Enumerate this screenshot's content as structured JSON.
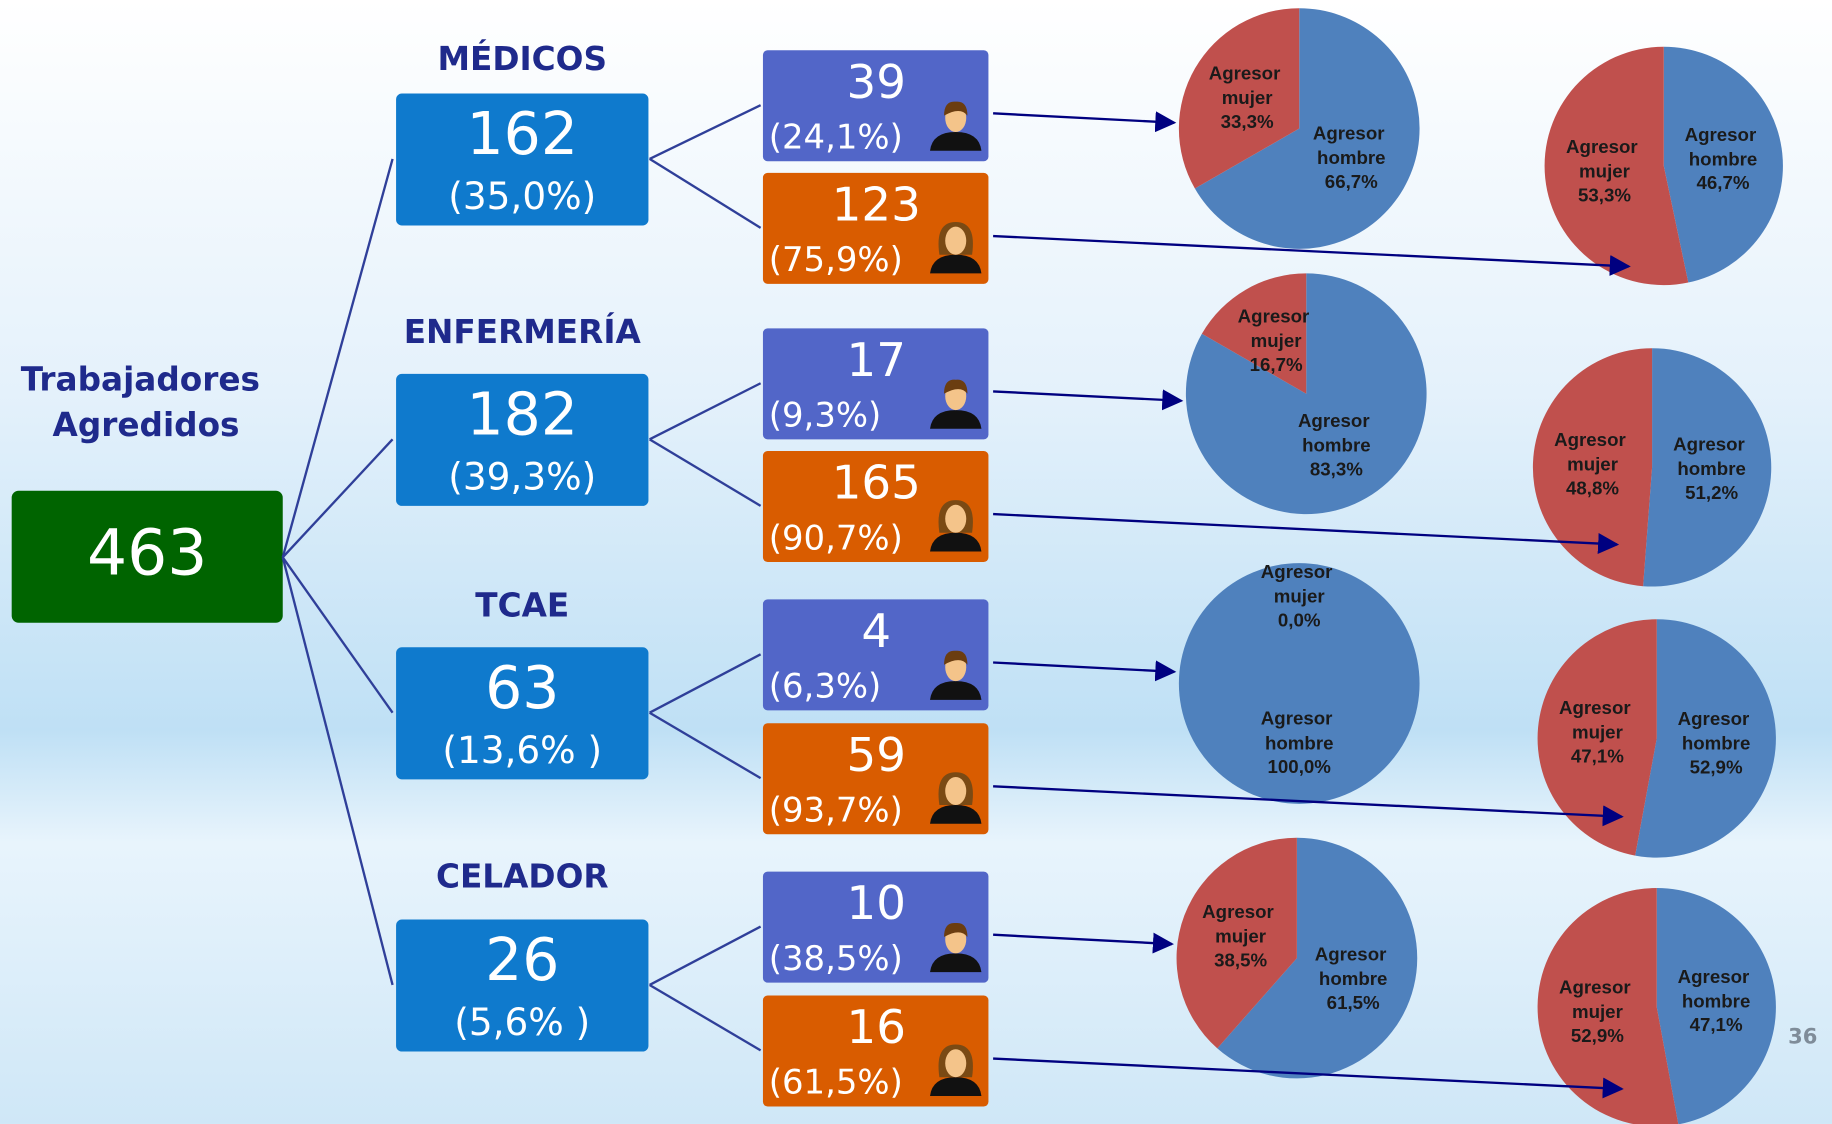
{
  "root": {
    "title": "Trabajadores Agredidos",
    "value": 463
  },
  "groups": [
    {
      "name": "MÉDICOS",
      "total": 162,
      "share": "(35,0%)",
      "male": {
        "count": 39,
        "share": "(24,1%)",
        "pie": {
          "type": "pie",
          "categories": [
            "Agresor mujer",
            "Agresor hombre"
          ],
          "values": [
            33.3,
            66.7
          ],
          "value_labels": [
            "33,3%",
            "66,7%"
          ],
          "colors": [
            "#c0504d",
            "#4f81bd"
          ]
        }
      },
      "female": {
        "count": 123,
        "share": "(75,9%)",
        "pie": {
          "type": "pie",
          "categories": [
            "Agresor mujer",
            "Agresor hombre"
          ],
          "values": [
            53.3,
            46.7
          ],
          "value_labels": [
            "53,3%",
            "46,7%"
          ],
          "colors": [
            "#c0504d",
            "#4f81bd"
          ]
        }
      }
    },
    {
      "name": "ENFERMERÍA",
      "total": 182,
      "share": "(39,3%)",
      "male": {
        "count": 17,
        "share": "(9,3%)",
        "pie": {
          "type": "pie",
          "categories": [
            "Agresor mujer",
            "Agresor hombre"
          ],
          "values": [
            16.7,
            83.3
          ],
          "value_labels": [
            "16,7%",
            "83,3%"
          ],
          "colors": [
            "#c0504d",
            "#4f81bd"
          ]
        }
      },
      "female": {
        "count": 165,
        "share": "(90,7%)",
        "pie": {
          "type": "pie",
          "categories": [
            "Agresor mujer",
            "Agresor hombre"
          ],
          "values": [
            48.8,
            51.2
          ],
          "value_labels": [
            "48,8%",
            "51,2%"
          ],
          "colors": [
            "#c0504d",
            "#4f81bd"
          ]
        }
      }
    },
    {
      "name": "TCAE",
      "total": 63,
      "share": "(13,6% )",
      "male": {
        "count": 4,
        "share": "(6,3%)",
        "pie": {
          "type": "pie",
          "categories": [
            "Agresor mujer",
            "Agresor hombre"
          ],
          "values": [
            0.0,
            100.0
          ],
          "value_labels": [
            "0,0%",
            "100,0%"
          ],
          "colors": [
            "#c0504d",
            "#4f81bd"
          ]
        }
      },
      "female": {
        "count": 59,
        "share": "(93,7%)",
        "pie": {
          "type": "pie",
          "categories": [
            "Agresor mujer",
            "Agresor hombre"
          ],
          "values": [
            47.1,
            52.9
          ],
          "value_labels": [
            "47,1%",
            "52,9%"
          ],
          "colors": [
            "#c0504d",
            "#4f81bd"
          ]
        }
      }
    },
    {
      "name": "CELADOR",
      "total": 26,
      "share": "(5,6% )",
      "male": {
        "count": 10,
        "share": "(38,5%)",
        "pie": {
          "type": "pie",
          "categories": [
            "Agresor mujer",
            "Agresor hombre"
          ],
          "values": [
            38.5,
            61.5
          ],
          "value_labels": [
            "38,5%",
            "61,5%"
          ],
          "colors": [
            "#c0504d",
            "#4f81bd"
          ]
        }
      },
      "female": {
        "count": 16,
        "share": "(61,5%)",
        "pie": {
          "type": "pie",
          "categories": [
            "Agresor mujer",
            "Agresor hombre"
          ],
          "values": [
            52.9,
            47.1
          ],
          "value_labels": [
            "52,9%",
            "47,1%"
          ],
          "colors": [
            "#c0504d",
            "#4f81bd"
          ]
        }
      }
    }
  ],
  "page_number": 36
}
